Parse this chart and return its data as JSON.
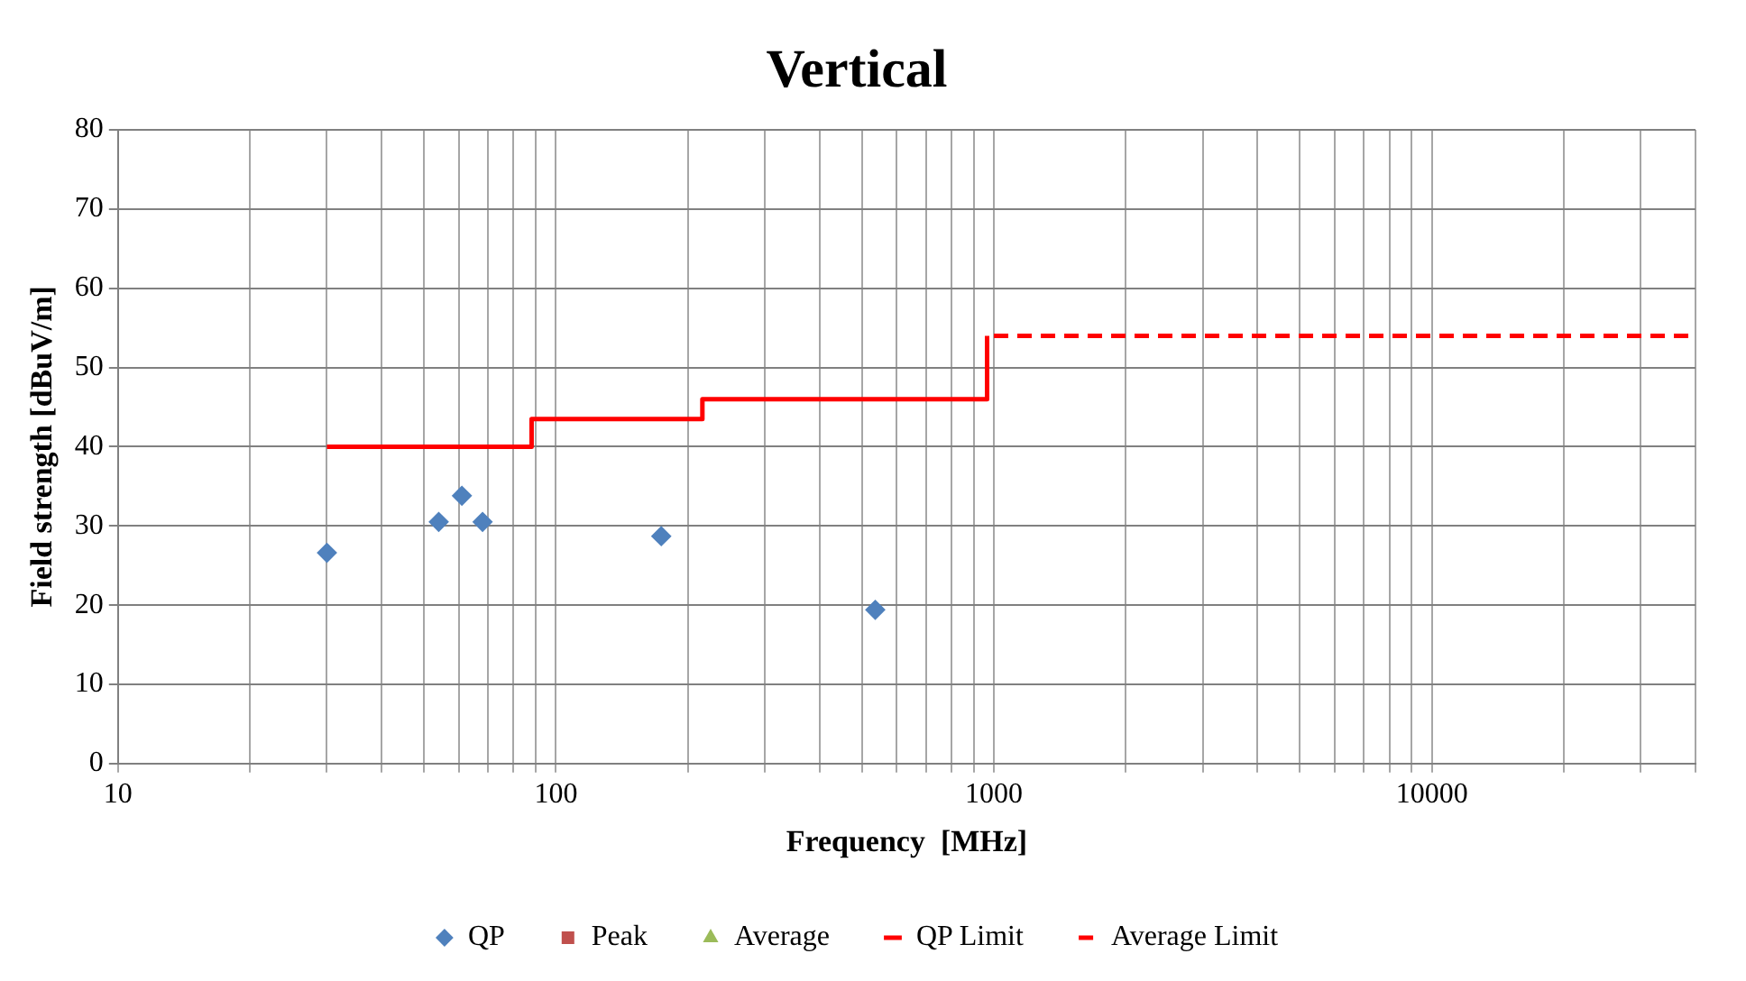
{
  "chart_data": {
    "type": "scatter",
    "title": "Vertical",
    "xlabel": "Frequency  [MHz]",
    "ylabel": "Field strength [dBuV/m]",
    "series": [
      {
        "name": "QP",
        "type": "scatter",
        "marker": "diamond",
        "color": "#4f81bd",
        "x": [
          30,
          54,
          61,
          68,
          174,
          536
        ],
        "values": [
          26.6,
          30.5,
          33.8,
          30.5,
          28.7,
          19.4
        ]
      },
      {
        "name": "Peak",
        "type": "scatter",
        "marker": "square",
        "color": "#c0504d"
      },
      {
        "name": "Average",
        "type": "scatter",
        "marker": "triangle",
        "color": "#9bbb59"
      },
      {
        "name": "QP Limit",
        "type": "line",
        "marker": "none",
        "line_style": "solid",
        "color": "#ff0000",
        "x": [
          30,
          88,
          88,
          216,
          216,
          965,
          965
        ],
        "values": [
          40,
          40,
          43.5,
          43.5,
          46,
          46,
          54
        ]
      },
      {
        "name": "Average Limit",
        "type": "line",
        "marker": "none",
        "line_style": "dashed",
        "color": "#ff0000",
        "x": [
          1000,
          40000
        ],
        "values": [
          54,
          54
        ]
      }
    ],
    "log": "x",
    "xlim": [
      10,
      40000
    ],
    "xticks": [
      10,
      {
        "value": 20,
        "label": null
      },
      {
        "value": 30,
        "label": null
      },
      {
        "value": 40,
        "label": null
      },
      {
        "value": 50,
        "label": null
      },
      {
        "value": 60,
        "label": null
      },
      {
        "value": 70,
        "label": null
      },
      {
        "value": 80,
        "label": null
      },
      {
        "value": 90,
        "label": null
      },
      100,
      {
        "value": 200,
        "label": null
      },
      {
        "value": 300,
        "label": null
      },
      {
        "value": 400,
        "label": null
      },
      {
        "value": 500,
        "label": null
      },
      {
        "value": 600,
        "label": null
      },
      {
        "value": 700,
        "label": null
      },
      {
        "value": 800,
        "label": null
      },
      {
        "value": 900,
        "label": null
      },
      1000,
      {
        "value": 2000,
        "label": null
      },
      {
        "value": 3000,
        "label": null
      },
      {
        "value": 4000,
        "label": null
      },
      {
        "value": 5000,
        "label": null
      },
      {
        "value": 6000,
        "label": null
      },
      {
        "value": 7000,
        "label": null
      },
      {
        "value": 8000,
        "label": null
      },
      {
        "value": 9000,
        "label": null
      },
      10000,
      {
        "value": 20000,
        "label": null
      },
      {
        "value": 30000,
        "label": null
      },
      {
        "value": 40000,
        "label": null
      }
    ],
    "ylim": [
      0,
      80
    ],
    "yticks": [
      0,
      10,
      20,
      30,
      40,
      50,
      60,
      70,
      80
    ],
    "grid": true,
    "legend": "bottom"
  }
}
